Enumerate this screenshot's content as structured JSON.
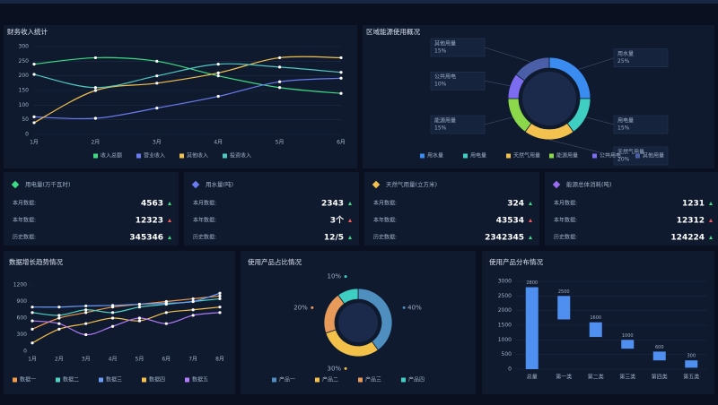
{
  "chart_data": [
    {
      "type": "line",
      "title": "财务收入统计",
      "categories": [
        "1月",
        "2月",
        "3月",
        "4月",
        "5月",
        "6月"
      ],
      "ylim": [
        0,
        300
      ],
      "yticks": [
        0,
        50,
        100,
        150,
        200,
        250,
        300
      ],
      "grid": true,
      "series": [
        {
          "name": "收入总额",
          "color": "#3ddc84",
          "values": [
            240,
            262,
            250,
            200,
            160,
            140
          ]
        },
        {
          "name": "营业收入",
          "color": "#6b7cf2",
          "values": [
            60,
            55,
            90,
            130,
            180,
            192
          ]
        },
        {
          "name": "其他收入",
          "color": "#f2c14e",
          "values": [
            40,
            150,
            175,
            210,
            262,
            262
          ]
        },
        {
          "name": "投资收入",
          "color": "#52c7c0",
          "values": [
            205,
            160,
            200,
            240,
            230,
            212
          ]
        }
      ]
    },
    {
      "type": "pie",
      "title": "区域能源使用概况",
      "labels": "callout",
      "categories": [
        "用水量",
        "用电量",
        "天然气用量",
        "能源用量",
        "公共用电",
        "其他用量"
      ],
      "values": [
        25,
        15,
        20,
        15,
        10,
        15
      ],
      "value_labels": [
        "25%",
        "15%",
        "20%",
        "15%",
        "10%",
        "15%"
      ],
      "colors": [
        "#3b8cf0",
        "#3ecfc2",
        "#f2c14e",
        "#8bd94a",
        "#7b6cf0",
        "#4a5fa8"
      ]
    },
    {
      "type": "line",
      "title": "数据增长趋势情况",
      "categories": [
        "1月",
        "2月",
        "3月",
        "4月",
        "5月",
        "6月",
        "7月",
        "8月"
      ],
      "ylim": [
        0,
        1200
      ],
      "yticks": [
        0,
        300,
        600,
        900,
        1200
      ],
      "grid": false,
      "series": [
        {
          "name": "数据一",
          "color": "#f2994a",
          "values": [
            400,
            600,
            700,
            800,
            850,
            900,
            950,
            1000
          ]
        },
        {
          "name": "数据二",
          "color": "#4fd1c5",
          "values": [
            700,
            650,
            750,
            700,
            800,
            850,
            900,
            950
          ]
        },
        {
          "name": "数据三",
          "color": "#6a9cf5",
          "values": [
            800,
            800,
            820,
            830,
            850,
            870,
            900,
            1050
          ]
        },
        {
          "name": "数据四",
          "color": "#f5c04a",
          "values": [
            150,
            400,
            500,
            600,
            550,
            700,
            750,
            800
          ]
        },
        {
          "name": "数据五",
          "color": "#b07cf7",
          "values": [
            550,
            500,
            300,
            450,
            600,
            500,
            650,
            700
          ]
        }
      ]
    },
    {
      "type": "pie",
      "title": "使用产品占比情况",
      "labels": "outside",
      "categories": [
        "产品一",
        "产品二",
        "产品三",
        "产品四"
      ],
      "values": [
        40,
        30,
        20,
        10
      ],
      "value_labels": [
        "40%",
        "30%",
        "20%",
        "10%"
      ],
      "colors": [
        "#4f8fc0",
        "#f3c14a",
        "#e89a5b",
        "#3ecfc2"
      ]
    },
    {
      "type": "range-bar",
      "title": "使用产品分布情况",
      "color": "#4f8ff0",
      "categories": [
        "总量",
        "第一类",
        "第二类",
        "第三类",
        "第四类",
        "第五类"
      ],
      "low": [
        0,
        1700,
        1100,
        700,
        300,
        50
      ],
      "high": [
        2800,
        2500,
        1600,
        1000,
        600,
        300
      ],
      "ylim": [
        0,
        3000
      ],
      "yticks": [
        0,
        500,
        1000,
        1500,
        2000,
        2500,
        3000
      ]
    }
  ],
  "cards": [
    {
      "title": "用电量(万千瓦时)",
      "color": "#3ddc84",
      "rows": [
        {
          "label": "本月数据:",
          "value": "4563"
        },
        {
          "label": "本年数据:",
          "value": "12323"
        },
        {
          "label": "历史数据:",
          "value": "345346"
        }
      ]
    },
    {
      "title": "用水量(吨)",
      "color": "#6b7cf2",
      "rows": [
        {
          "label": "本月数据:",
          "value": "2343"
        },
        {
          "label": "本年数据:",
          "value": "3个"
        },
        {
          "label": "历史数据:",
          "value": "12/5"
        }
      ]
    },
    {
      "title": "天然气用量(立方米)",
      "color": "#f2c14e",
      "rows": [
        {
          "label": "本月数据:",
          "value": "324"
        },
        {
          "label": "本年数据:",
          "value": "43534"
        },
        {
          "label": "历史数据:",
          "value": "2342345"
        }
      ]
    },
    {
      "title": "能源总体消耗(吨)",
      "color": "#9b6cf0",
      "rows": [
        {
          "label": "本月数据:",
          "value": "1231"
        },
        {
          "label": "本年数据:",
          "value": "12312"
        },
        {
          "label": "历史数据:",
          "value": "124224"
        }
      ]
    }
  ]
}
